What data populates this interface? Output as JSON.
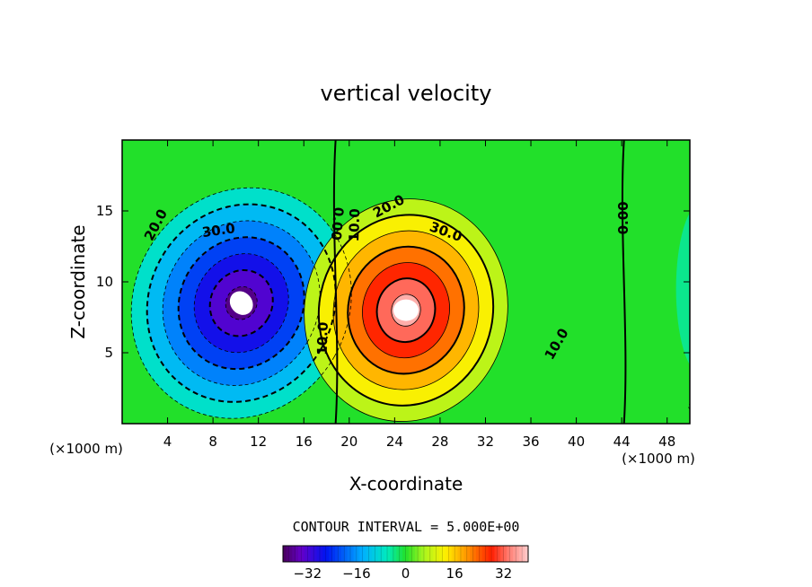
{
  "chart_data": {
    "type": "heatmap",
    "title": "vertical velocity",
    "xlabel": "X-coordinate",
    "ylabel": "Z-coordinate",
    "x_unit_left": "(×1000 m)",
    "x_unit_right": "(×1000 m)",
    "xlim": [
      0,
      50
    ],
    "ylim": [
      0,
      20
    ],
    "x_ticks": [
      4,
      8,
      12,
      16,
      20,
      24,
      28,
      32,
      36,
      40,
      44,
      48
    ],
    "y_ticks": [
      5,
      10,
      15
    ],
    "contour_interval_label": "CONTOUR INTERVAL = 5.000E+00",
    "colorbar_range": [
      -40,
      40
    ],
    "colorbar_ticks": [
      -32,
      -16,
      0,
      16,
      32
    ],
    "downdraft": {
      "center_x": 10.5,
      "center_z": 8.5,
      "min_value": -40
    },
    "updraft": {
      "center_x": 25.0,
      "center_z": 8.0,
      "max_value": 40
    },
    "contour_labels": [
      {
        "text": "20.0",
        "x": 3.0,
        "z": 14.0,
        "angle": -62
      },
      {
        "text": "30.0",
        "x": 8.5,
        "z": 13.6,
        "angle": -8
      },
      {
        "text": "10.0",
        "x": 17.7,
        "z": 6.0,
        "angle": -88
      },
      {
        "text": "0.00",
        "x": 18.9,
        "z": 14.1,
        "angle": 95
      },
      {
        "text": "10.0",
        "x": 20.5,
        "z": 14.0,
        "angle": -88
      },
      {
        "text": "20.0",
        "x": 23.5,
        "z": 15.3,
        "angle": -28
      },
      {
        "text": "30.0",
        "x": 28.5,
        "z": 13.5,
        "angle": 20
      },
      {
        "text": "10.0",
        "x": 38.3,
        "z": 5.6,
        "angle": -60
      },
      {
        "text": "0.00",
        "x": 44.2,
        "z": 14.5,
        "angle": -90
      }
    ]
  }
}
